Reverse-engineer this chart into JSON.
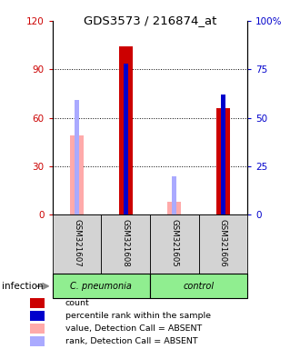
{
  "title": "GDS3573 / 216874_at",
  "samples": [
    "GSM321607",
    "GSM321608",
    "GSM321605",
    "GSM321606"
  ],
  "ylim_left": [
    0,
    120
  ],
  "ylim_right": [
    0,
    100
  ],
  "yticks_left": [
    0,
    30,
    60,
    90,
    120
  ],
  "ytick_labels_left": [
    "0",
    "30",
    "60",
    "90",
    "120"
  ],
  "yticks_right": [
    0,
    25,
    50,
    75,
    100
  ],
  "ytick_labels_right": [
    "0",
    "25",
    "50",
    "75",
    "100%"
  ],
  "count_values": [
    null,
    104,
    null,
    66
  ],
  "percentile_values": [
    null,
    78,
    null,
    62
  ],
  "absent_value_values": [
    49,
    null,
    8,
    null
  ],
  "absent_rank_values": [
    59,
    null,
    20,
    null
  ],
  "count_color": "#cc0000",
  "percentile_color": "#0000cc",
  "absent_value_color": "#ffaaaa",
  "absent_rank_color": "#aaaaff",
  "grid_lines": [
    30,
    60,
    90
  ],
  "group_spans": [
    {
      "label": "C. pneumonia",
      "start": 0,
      "end": 1
    },
    {
      "label": "control",
      "start": 2,
      "end": 3
    }
  ],
  "legend_items": [
    {
      "label": "count",
      "color": "#cc0000"
    },
    {
      "label": "percentile rank within the sample",
      "color": "#0000cc"
    },
    {
      "label": "value, Detection Call = ABSENT",
      "color": "#ffaaaa"
    },
    {
      "label": "rank, Detection Call = ABSENT",
      "color": "#aaaaff"
    }
  ]
}
